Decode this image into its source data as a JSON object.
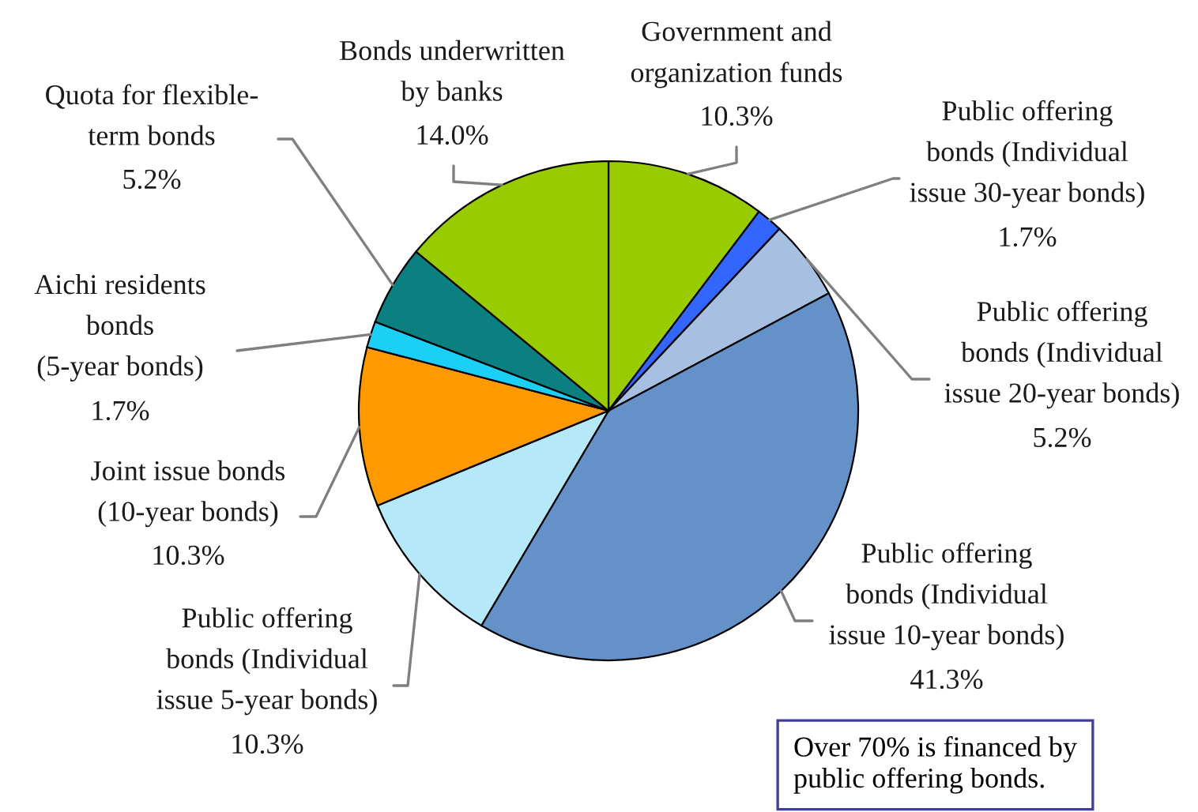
{
  "chart_data": {
    "type": "pie",
    "categories": [
      "Government and\norganization funds",
      "Public offering\nbonds (Individual\nissue 30-year bonds)",
      "Public offering\nbonds (Individual\nissue 20-year bonds)",
      "Public offering\nbonds (Individual\nissue 10-year bonds)",
      "Public offering\nbonds (Individual\nissue 5-year bonds)",
      "Joint issue bonds\n(10-year bonds)",
      "Aichi residents\nbonds\n(5-year bonds)",
      "Quota for flexible-\nterm bonds",
      "Bonds underwritten\nby banks"
    ],
    "values": [
      10.3,
      1.7,
      5.2,
      41.3,
      10.3,
      10.3,
      1.7,
      5.2,
      14.0
    ],
    "colors": [
      "#99cc00",
      "#3366ff",
      "#a7bfe1",
      "#6591c9",
      "#b5e9f9",
      "#ff9900",
      "#1ccff5",
      "#0b8080",
      "#99cc00"
    ],
    "value_labels": [
      "10.3%",
      "1.7%",
      "5.2%",
      "41.3%",
      "10.3%",
      "10.3%",
      "1.7%",
      "5.2%",
      "14.0%"
    ],
    "annotations": [
      "Over 70% is financed by\npublic offering bonds."
    ]
  }
}
